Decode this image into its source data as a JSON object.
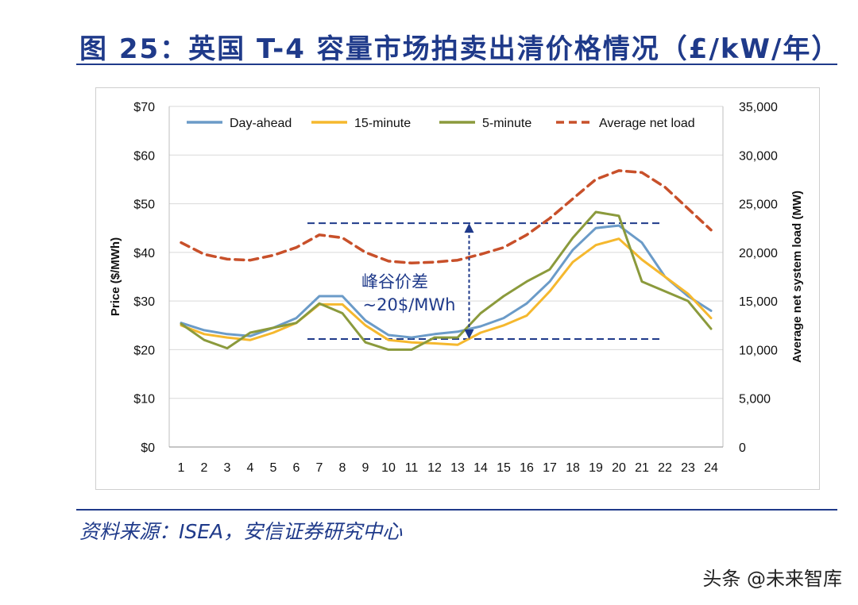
{
  "page": {
    "title": "图 25：英国 T-4 容量市场拍卖出清价格情况（£/kW/年）",
    "source": "资料来源：ISEA，安信证券研究中心",
    "watermark": "头条 @未来智库"
  },
  "chart_data": {
    "type": "line",
    "categories": [
      "1",
      "2",
      "3",
      "4",
      "5",
      "6",
      "7",
      "8",
      "9",
      "10",
      "11",
      "12",
      "13",
      "14",
      "15",
      "16",
      "17",
      "18",
      "19",
      "20",
      "21",
      "22",
      "23",
      "24"
    ],
    "xlabel": "",
    "ylabel": "Price ($/MWh)",
    "ylabel_right": "Average net system load (MW)",
    "ylim": [
      0,
      70
    ],
    "ylim_right": [
      0,
      35000
    ],
    "yticks": [
      "$0",
      "$10",
      "$20",
      "$30",
      "$40",
      "$50",
      "$60",
      "$70"
    ],
    "yticks_right": [
      "0",
      "5,000",
      "10,000",
      "15,000",
      "20,000",
      "25,000",
      "30,000",
      "35,000"
    ],
    "legend_position": "top",
    "series": [
      {
        "name": "Day-ahead",
        "axis": "left",
        "color": "#6b9bc8",
        "dash": false,
        "values": [
          25.5,
          24,
          23.2,
          22.8,
          24.5,
          26.5,
          31,
          31,
          26,
          23,
          22.5,
          23.2,
          23.7,
          24.8,
          26.5,
          29.5,
          34,
          40.5,
          45,
          45.5,
          42,
          35,
          31,
          28
        ]
      },
      {
        "name": "15-minute",
        "axis": "left",
        "color": "#f5b82e",
        "dash": false,
        "values": [
          25,
          23.2,
          22.5,
          22,
          23.5,
          25.5,
          29.3,
          29.3,
          25,
          22,
          21.5,
          21.3,
          21,
          23.5,
          25,
          27,
          32,
          38,
          41.5,
          42.8,
          38.5,
          35,
          31.5,
          26.5
        ]
      },
      {
        "name": "5-minute",
        "axis": "left",
        "color": "#8b9a3c",
        "dash": false,
        "values": [
          25.3,
          22,
          20.3,
          23.5,
          24.5,
          25.5,
          29.5,
          27.5,
          21.5,
          20,
          20,
          22.5,
          22.5,
          27.5,
          31,
          34,
          36.5,
          43,
          48.3,
          47.5,
          34,
          32,
          30,
          24.3
        ]
      },
      {
        "name": "Average net load",
        "axis": "right",
        "color": "#c8502a",
        "dash": true,
        "values": [
          21000,
          19800,
          19300,
          19200,
          19700,
          20500,
          21800,
          21500,
          20000,
          19100,
          18900,
          19000,
          19200,
          19800,
          20500,
          21800,
          23500,
          25500,
          27500,
          28400,
          28200,
          26700,
          24500,
          22300
        ]
      }
    ],
    "annotations": [
      {
        "text": "峰谷价差",
        "category": "10"
      },
      {
        "text": "~20$/MWh",
        "category": "10"
      }
    ],
    "reference_lines": [
      {
        "value": 46,
        "axis": "left",
        "from": "7",
        "to": "22",
        "style": "dashed",
        "color": "#1f3a8a"
      },
      {
        "value": 22.2,
        "axis": "left",
        "from": "7",
        "to": "22",
        "style": "dashed",
        "color": "#1f3a8a"
      }
    ],
    "arrow": {
      "category": "13.5",
      "from": 22.2,
      "to": 46,
      "color": "#1f3a8a"
    }
  }
}
